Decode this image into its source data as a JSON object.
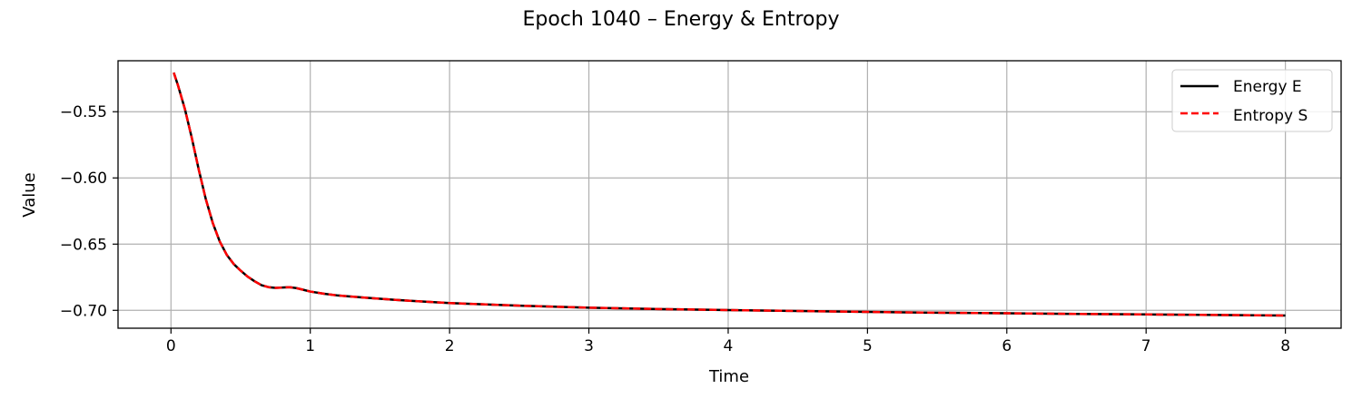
{
  "chart_data": {
    "type": "line",
    "title": "Epoch 1040 – Energy & Entropy",
    "xlabel": "Time",
    "ylabel": "Value",
    "xlim": [
      -0.38,
      8.4
    ],
    "ylim": [
      -0.7135,
      -0.5115
    ],
    "xticks": [
      0,
      1,
      2,
      3,
      4,
      5,
      6,
      7,
      8
    ],
    "xtick_labels": [
      "0",
      "1",
      "2",
      "3",
      "4",
      "5",
      "6",
      "7",
      "8"
    ],
    "yticks": [
      -0.55,
      -0.6,
      -0.65,
      -0.7
    ],
    "ytick_labels": [
      "−0.55",
      "−0.60",
      "−0.65",
      "−0.70"
    ],
    "grid": true,
    "legend_position": "top-right",
    "x": [
      0.02,
      0.05,
      0.1,
      0.15,
      0.2,
      0.25,
      0.3,
      0.35,
      0.4,
      0.45,
      0.5,
      0.55,
      0.6,
      0.65,
      0.7,
      0.75,
      0.8,
      0.85,
      0.9,
      0.95,
      1.0,
      1.1,
      1.2,
      1.4,
      1.6,
      1.8,
      2.0,
      2.5,
      3.0,
      3.5,
      4.0,
      4.5,
      5.0,
      5.5,
      6.0,
      6.5,
      7.0,
      7.5,
      8.0
    ],
    "series": [
      {
        "name": "Energy E",
        "color": "#000000",
        "style": "solid",
        "values": [
          -0.5205,
          -0.53,
          -0.548,
          -0.57,
          -0.594,
          -0.616,
          -0.634,
          -0.648,
          -0.658,
          -0.665,
          -0.67,
          -0.6745,
          -0.678,
          -0.681,
          -0.6825,
          -0.683,
          -0.6828,
          -0.6825,
          -0.6832,
          -0.6845,
          -0.6858,
          -0.6875,
          -0.6888,
          -0.6905,
          -0.692,
          -0.6933,
          -0.6945,
          -0.6965,
          -0.698,
          -0.699,
          -0.6998,
          -0.7005,
          -0.7012,
          -0.7018,
          -0.7022,
          -0.7027,
          -0.7031,
          -0.7035,
          -0.7039
        ]
      },
      {
        "name": "Entropy S",
        "color": "#ff0000",
        "style": "dashed",
        "values": [
          -0.5205,
          -0.53,
          -0.548,
          -0.57,
          -0.594,
          -0.616,
          -0.634,
          -0.648,
          -0.658,
          -0.665,
          -0.67,
          -0.6745,
          -0.678,
          -0.681,
          -0.6825,
          -0.683,
          -0.6828,
          -0.6825,
          -0.6832,
          -0.6845,
          -0.6858,
          -0.6875,
          -0.6888,
          -0.6905,
          -0.692,
          -0.6933,
          -0.6945,
          -0.6965,
          -0.698,
          -0.699,
          -0.6998,
          -0.7005,
          -0.7012,
          -0.7018,
          -0.7022,
          -0.7027,
          -0.7031,
          -0.7035,
          -0.7039
        ]
      }
    ]
  }
}
